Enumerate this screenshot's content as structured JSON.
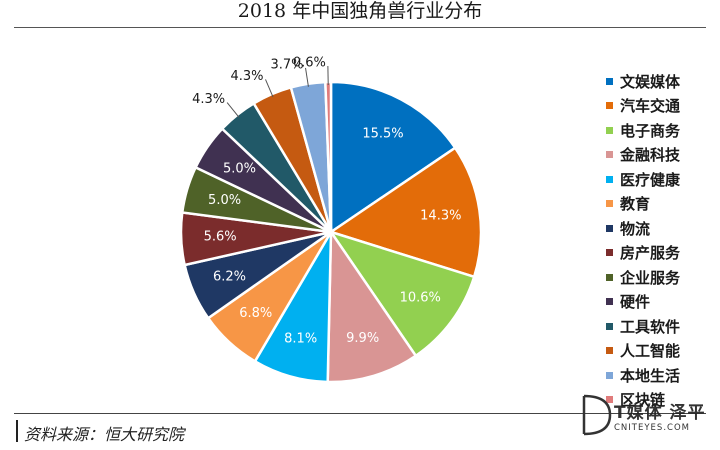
{
  "chart_data": {
    "type": "pie",
    "title": "2018 年中国独角兽行业分布",
    "categories": [
      "文娱媒体",
      "汽车交通",
      "电子商务",
      "金融科技",
      "医疗健康",
      "教育",
      "物流",
      "房产服务",
      "企业服务",
      "硬件",
      "工具软件",
      "人工智能",
      "本地生活",
      "区块链"
    ],
    "values": [
      15.5,
      14.3,
      10.6,
      9.9,
      8.1,
      6.8,
      6.2,
      5.6,
      5.0,
      5.0,
      4.3,
      4.3,
      3.7,
      0.6
    ],
    "labels": [
      "15.5%",
      "14.3%",
      "10.6%",
      "9.9%",
      "8.1%",
      "6.8%",
      "6.2%",
      "5.6%",
      "5.0%",
      "5.0%",
      "4.3%",
      "4.3%",
      "3.7%",
      "0.6%"
    ],
    "colors": [
      "#0070C0",
      "#E36C09",
      "#92D050",
      "#D99594",
      "#00B0F0",
      "#F79646",
      "#1F3864",
      "#7B2C2C",
      "#4F6228",
      "#403151",
      "#215968",
      "#C55A11",
      "#7EA6D8",
      "#E07B7B"
    ],
    "legend_position": "right",
    "start": "top",
    "direction": "clockwise"
  },
  "source": {
    "label": "资料来源：恒大研究院"
  },
  "watermark": {
    "text": "T媒体 泽平",
    "sub": "CNITEYES.COM"
  }
}
